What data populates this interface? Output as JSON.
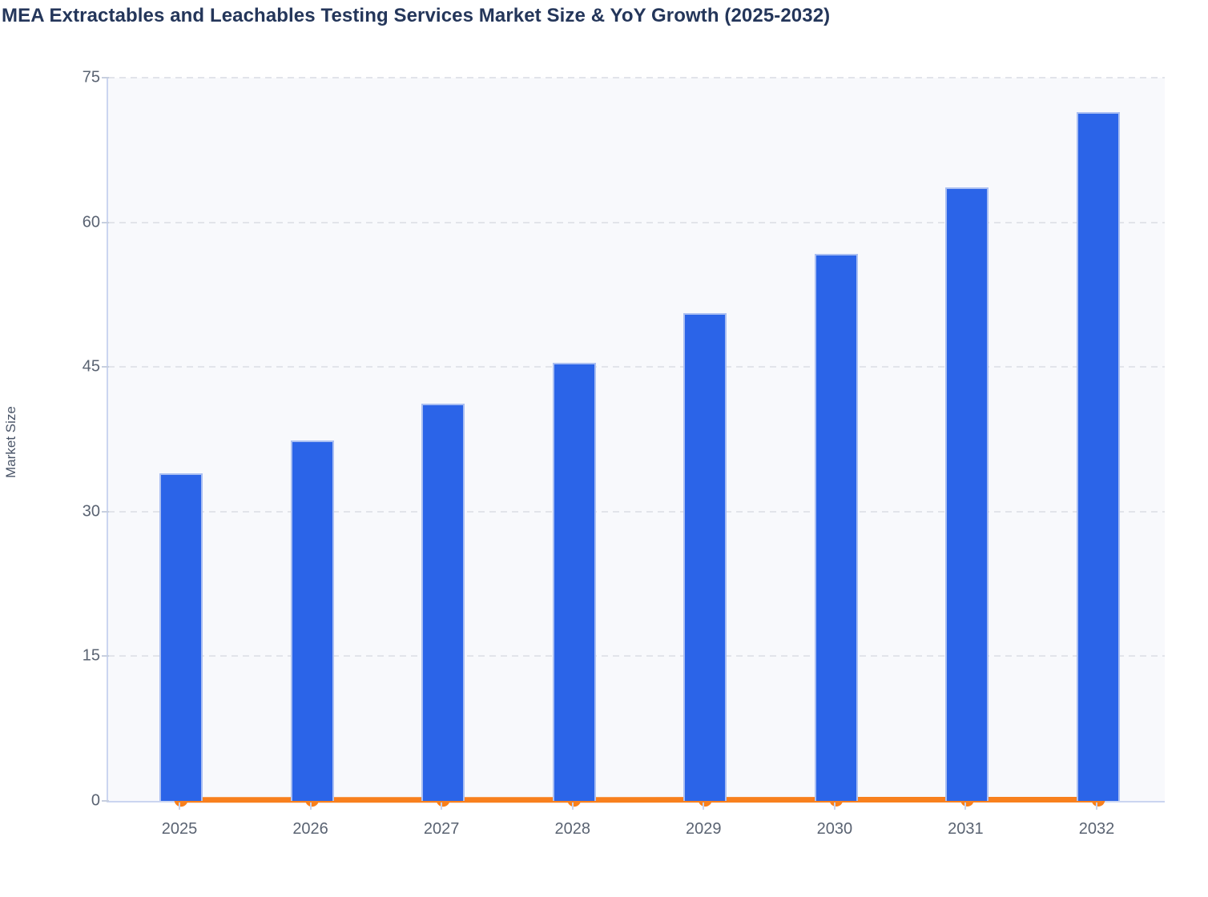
{
  "title": "MEA Extractables and Leachables Testing Services Market Size & YoY Growth (2025-2032)",
  "colors": {
    "bar": "#2B64E8",
    "bar_border": "#C1CFF3",
    "line": "#F8801D",
    "title_text": "#24365A",
    "tick_text": "#5A6372",
    "axis_label_text": "#4A5568",
    "axis_line": "#CBD5F0",
    "gridline": "#E2E4EA",
    "plot_bg": "#F8F9FC",
    "page_bg": "#FFFFFF"
  },
  "chart_data": {
    "type": "bar",
    "title": "MEA Extractables and Leachables Testing Services Market Size & YoY Growth (2025-2032)",
    "categories": [
      "2025",
      "2026",
      "2027",
      "2028",
      "2029",
      "2030",
      "2031",
      "2032"
    ],
    "series": [
      {
        "name": "Market Size",
        "type": "bar",
        "color": "#2B64E8",
        "values": [
          34.0,
          37.4,
          41.2,
          45.4,
          50.6,
          56.7,
          63.6,
          71.4
        ]
      },
      {
        "name": "YoY Growth",
        "type": "line",
        "color": "#F8801D",
        "values": [
          0.1,
          0.1,
          0.1,
          0.1,
          0.11,
          0.12,
          0.12,
          0.12
        ]
      }
    ],
    "xlabel": "",
    "ylabel": "Market Size",
    "ylim": [
      0,
      75
    ],
    "yticks": [
      0,
      15,
      30,
      45,
      60,
      75
    ],
    "grid": true,
    "legend": "none"
  }
}
